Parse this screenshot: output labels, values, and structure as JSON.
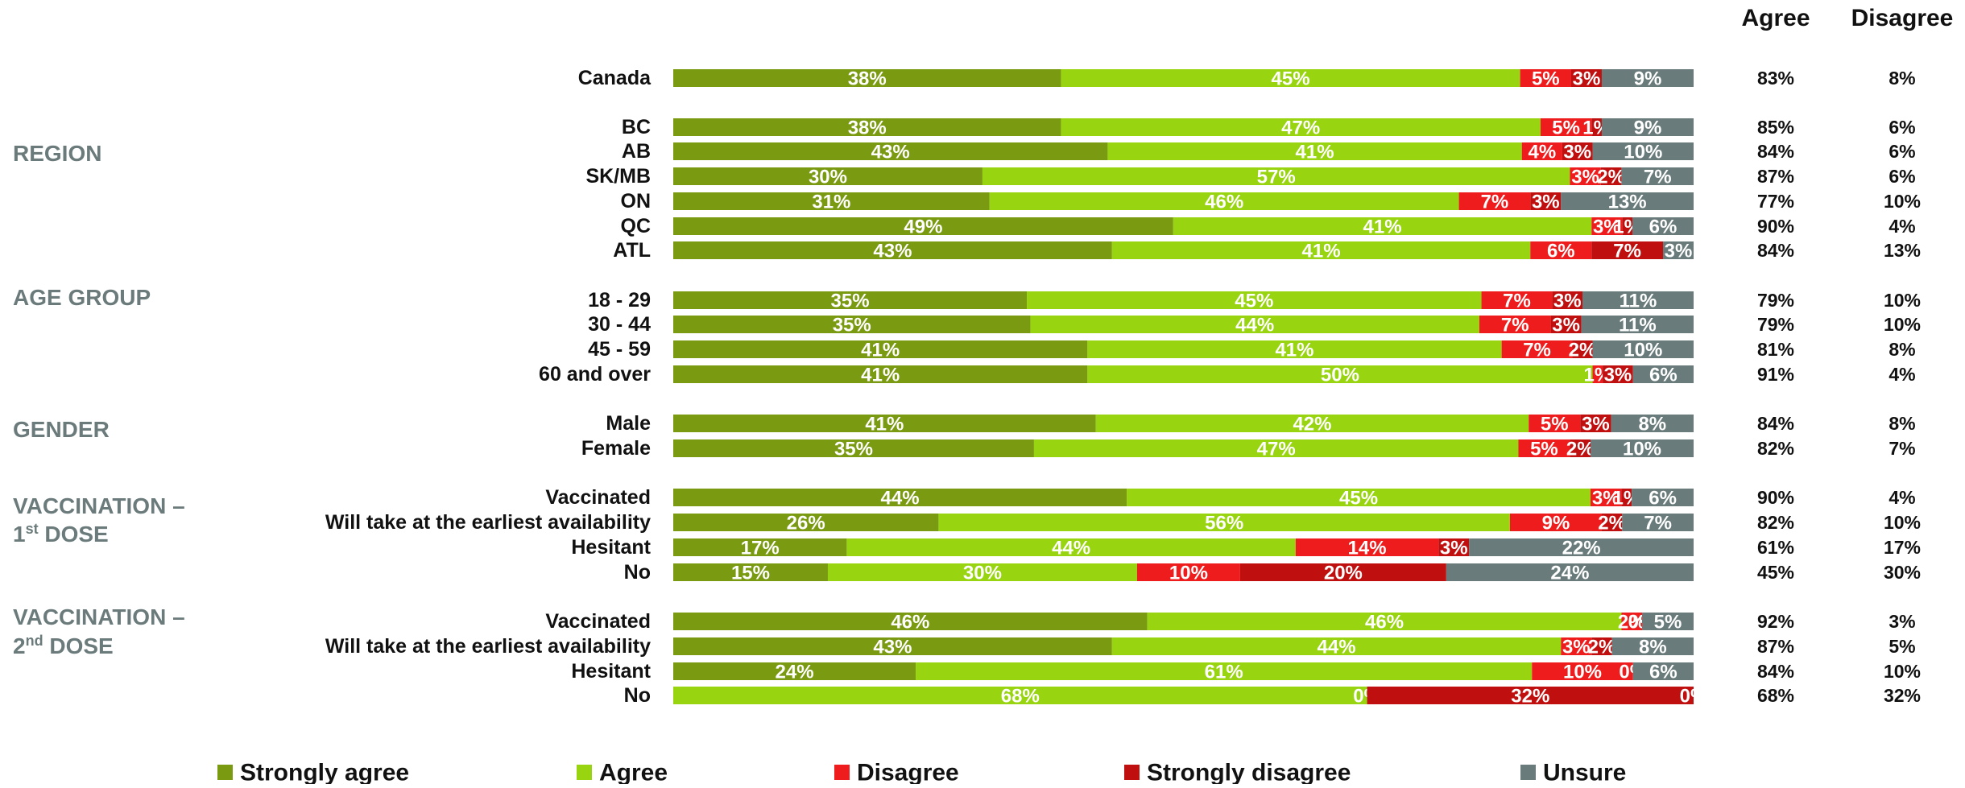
{
  "chart_data": {
    "type": "bar",
    "orientation": "horizontal",
    "stacked": true,
    "series": [
      {
        "name": "Strongly agree",
        "color": "#7a9a12"
      },
      {
        "name": "Agree",
        "color": "#98d40f"
      },
      {
        "name": "Disagree",
        "color": "#ee1c1c"
      },
      {
        "name": "Strongly disagree",
        "color": "#c00f0f"
      },
      {
        "name": "Unsure",
        "color": "#6a7b7b"
      }
    ],
    "summary_headers": {
      "agree": "Agree",
      "disagree": "Disagree"
    },
    "legend_position": "bottom",
    "groups": [
      {
        "title": "",
        "rows": [
          {
            "label": "Canada",
            "values": [
              38,
              45,
              5,
              3,
              9
            ],
            "agree": "83%",
            "disagree": "8%"
          }
        ]
      },
      {
        "title": "REGION",
        "rows": [
          {
            "label": "BC",
            "values": [
              38,
              47,
              5,
              1,
              9
            ],
            "agree": "85%",
            "disagree": "6%"
          },
          {
            "label": "AB",
            "values": [
              43,
              41,
              4,
              3,
              10
            ],
            "agree": "84%",
            "disagree": "6%"
          },
          {
            "label": "SK/MB",
            "values": [
              30,
              57,
              3,
              2,
              7
            ],
            "agree": "87%",
            "disagree": "6%"
          },
          {
            "label": "ON",
            "values": [
              31,
              46,
              7,
              3,
              13
            ],
            "agree": "77%",
            "disagree": "10%"
          },
          {
            "label": "QC",
            "values": [
              49,
              41,
              3,
              1,
              6
            ],
            "agree": "90%",
            "disagree": "4%"
          },
          {
            "label": "ATL",
            "values": [
              43,
              41,
              6,
              7,
              3
            ],
            "agree": "84%",
            "disagree": "13%"
          }
        ]
      },
      {
        "title": "AGE GROUP",
        "rows": [
          {
            "label": "18 - 29",
            "values": [
              35,
              45,
              7,
              3,
              11
            ],
            "agree": "79%",
            "disagree": "10%"
          },
          {
            "label": "30 - 44",
            "values": [
              35,
              44,
              7,
              3,
              11
            ],
            "agree": "79%",
            "disagree": "10%"
          },
          {
            "label": "45 - 59",
            "values": [
              41,
              41,
              7,
              2,
              10
            ],
            "agree": "81%",
            "disagree": "8%"
          },
          {
            "label": "60 and over",
            "values": [
              41,
              50,
              1,
              3,
              6
            ],
            "agree": "91%",
            "disagree": "4%"
          }
        ]
      },
      {
        "title": "GENDER",
        "rows": [
          {
            "label": "Male",
            "values": [
              41,
              42,
              5,
              3,
              8
            ],
            "agree": "84%",
            "disagree": "8%"
          },
          {
            "label": "Female",
            "values": [
              35,
              47,
              5,
              2,
              10
            ],
            "agree": "82%",
            "disagree": "7%"
          }
        ]
      },
      {
        "title": "VACCINATION – 1st DOSE",
        "rows": [
          {
            "label": "Vaccinated",
            "values": [
              44,
              45,
              3,
              1,
              6
            ],
            "agree": "90%",
            "disagree": "4%"
          },
          {
            "label": "Will take at the earliest availability",
            "values": [
              26,
              56,
              9,
              2,
              7
            ],
            "agree": "82%",
            "disagree": "10%"
          },
          {
            "label": "Hesitant",
            "values": [
              17,
              44,
              14,
              3,
              22
            ],
            "agree": "61%",
            "disagree": "17%"
          },
          {
            "label": "No",
            "values": [
              15,
              30,
              10,
              20,
              24
            ],
            "agree": "45%",
            "disagree": "30%"
          }
        ]
      },
      {
        "title": "VACCINATION – 2nd DOSE",
        "rows": [
          {
            "label": "Vaccinated",
            "values": [
              46,
              46,
              2,
              0,
              5
            ],
            "agree": "92%",
            "disagree": "3%"
          },
          {
            "label": "Will take at the earliest availability",
            "values": [
              43,
              44,
              3,
              2,
              8
            ],
            "agree": "87%",
            "disagree": "5%"
          },
          {
            "label": "Hesitant",
            "values": [
              24,
              61,
              10,
              0,
              6
            ],
            "agree": "84%",
            "disagree": "10%"
          },
          {
            "label": "No",
            "values": [
              0,
              68,
              0,
              32,
              0
            ],
            "agree": "68%",
            "disagree": "32%"
          }
        ]
      }
    ]
  }
}
